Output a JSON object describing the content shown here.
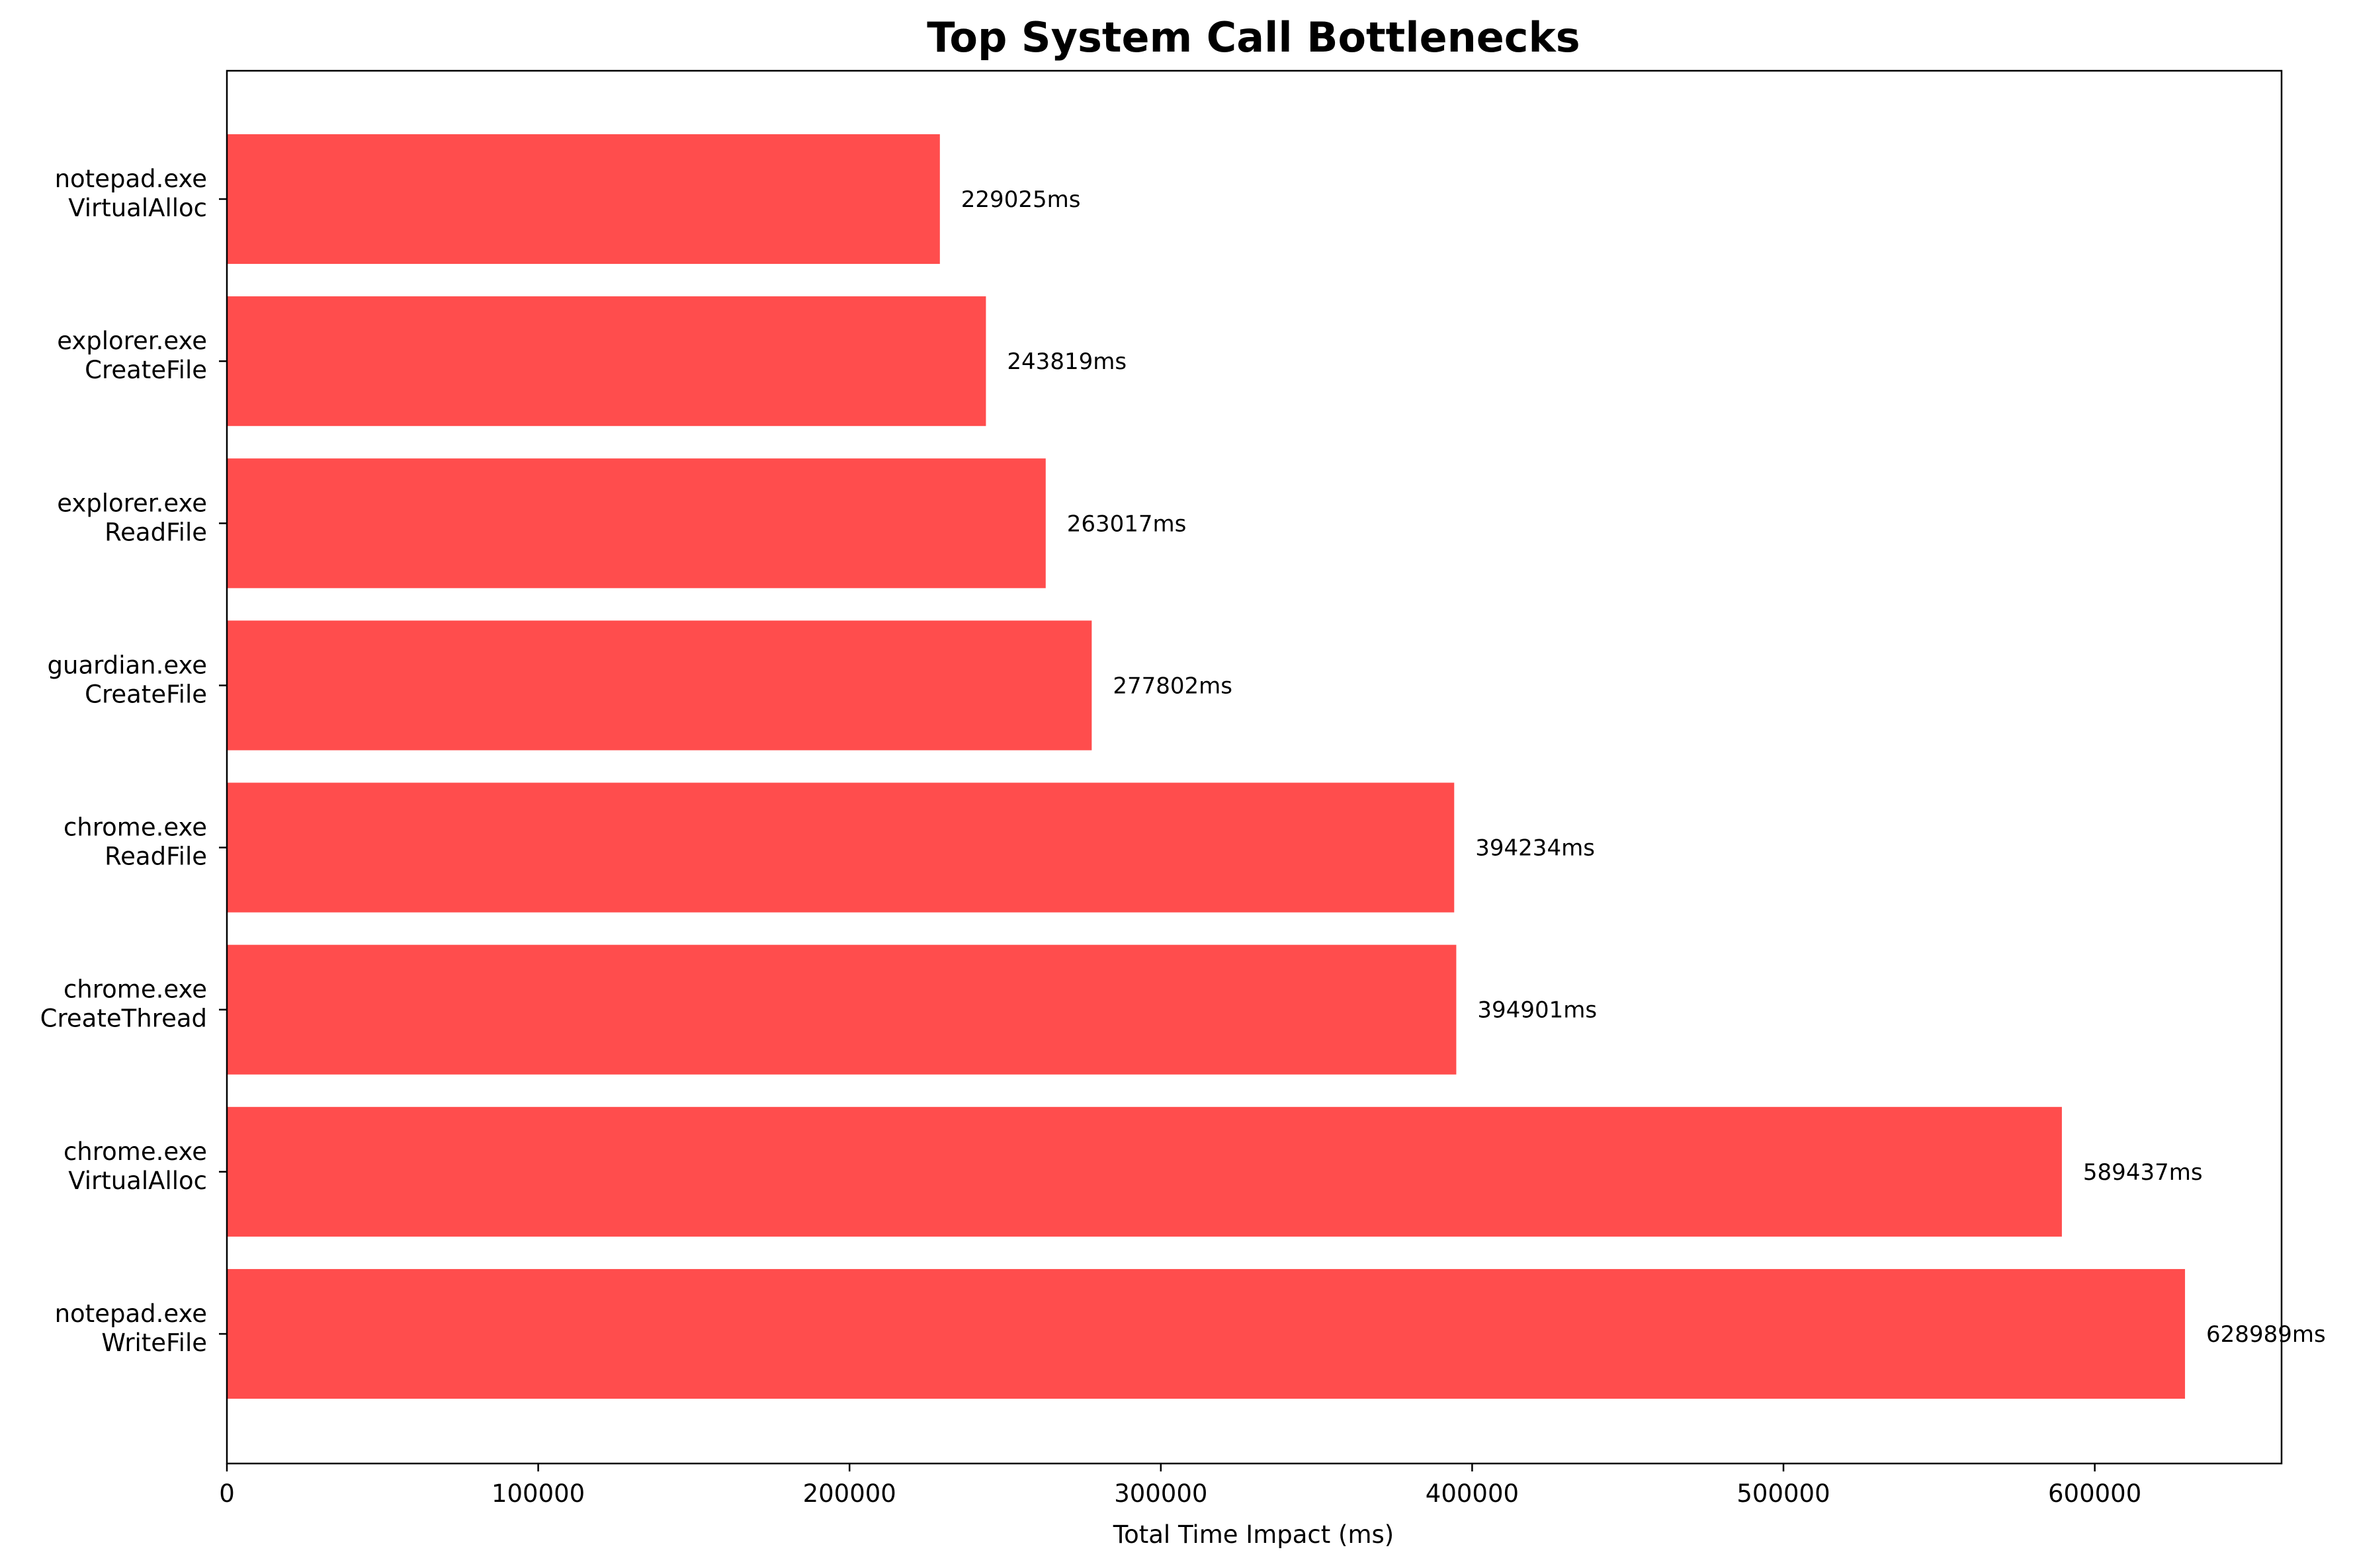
{
  "chart_data": {
    "type": "bar",
    "orientation": "horizontal",
    "title": "Top System Call Bottlenecks",
    "xlabel": "Total Time Impact (ms)",
    "ylabel": "",
    "xlim": [
      0,
      660000
    ],
    "xticks": [
      "0",
      "100000",
      "200000",
      "300000",
      "400000",
      "500000",
      "600000"
    ],
    "grid": false,
    "bar_color": "#ff4d4d",
    "categories": [
      [
        "notepad.exe",
        "VirtualAlloc"
      ],
      [
        "explorer.exe",
        "CreateFile"
      ],
      [
        "explorer.exe",
        "ReadFile"
      ],
      [
        "guardian.exe",
        "CreateFile"
      ],
      [
        "chrome.exe",
        "ReadFile"
      ],
      [
        "chrome.exe",
        "CreateThread"
      ],
      [
        "chrome.exe",
        "VirtualAlloc"
      ],
      [
        "notepad.exe",
        "WriteFile"
      ]
    ],
    "values": [
      229025,
      243819,
      263017,
      277802,
      394234,
      394901,
      589437,
      628989
    ],
    "value_labels": [
      "229025ms",
      "243819ms",
      "263017ms",
      "277802ms",
      "394234ms",
      "394901ms",
      "589437ms",
      "628989ms"
    ]
  }
}
